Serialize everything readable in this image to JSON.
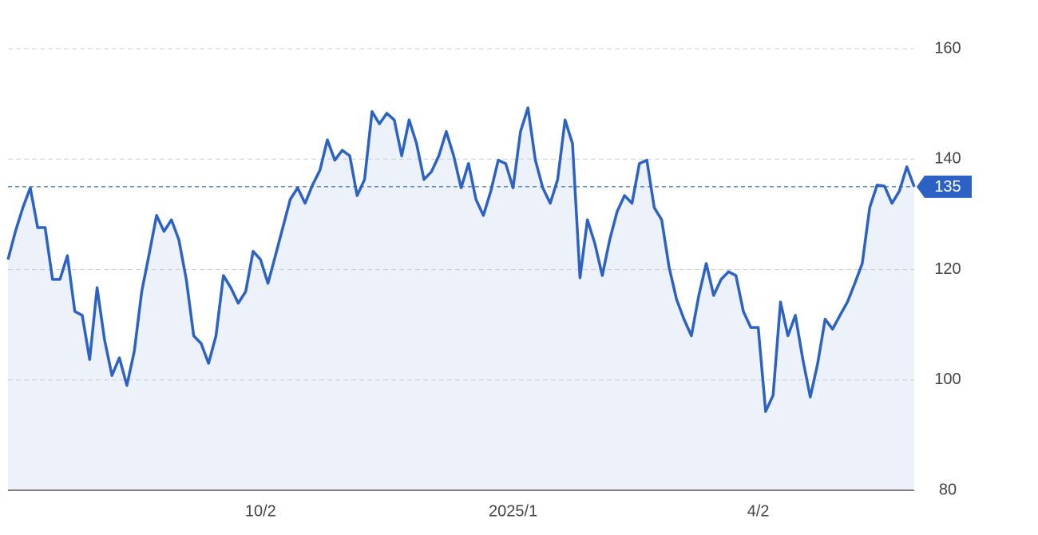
{
  "chart_data": {
    "type": "line",
    "color": "#2b62c4",
    "fill": "#edf1fa",
    "grid": true,
    "ylim": [
      80,
      160
    ],
    "yticks": [
      80,
      100,
      120,
      140,
      160
    ],
    "categories": [
      null,
      null,
      null,
      null,
      null,
      null,
      null,
      null,
      null,
      null,
      null,
      null,
      null,
      null,
      null,
      null,
      null,
      null,
      null,
      null,
      null,
      null,
      null,
      null,
      null,
      null,
      null,
      null,
      null,
      null,
      null,
      null,
      null,
      null,
      "10/2",
      null,
      null,
      null,
      null,
      null,
      null,
      null,
      null,
      null,
      null,
      null,
      null,
      null,
      null,
      null,
      null,
      null,
      null,
      null,
      null,
      null,
      null,
      null,
      null,
      null,
      null,
      null,
      null,
      null,
      null,
      null,
      null,
      null,
      "2025/1",
      null,
      null,
      null,
      null,
      null,
      null,
      null,
      null,
      null,
      null,
      null,
      null,
      null,
      null,
      null,
      null,
      null,
      null,
      null,
      null,
      null,
      null,
      null,
      null,
      null,
      null,
      null,
      null,
      null,
      null,
      null,
      null,
      "4/2",
      null,
      null,
      null,
      null,
      null,
      null,
      null,
      null,
      null,
      null,
      null,
      null,
      null,
      null,
      null,
      null,
      null,
      null,
      null,
      null,
      null
    ],
    "values": [
      121.8,
      126.9,
      131.2,
      134.8,
      127.6,
      127.6,
      118.2,
      118.2,
      122.5,
      112.4,
      111.7,
      103.7,
      116.7,
      107.3,
      100.8,
      104,
      99,
      105.2,
      116,
      122.8,
      129.8,
      126.9,
      129,
      125.4,
      118.2,
      108,
      106.6,
      103,
      108,
      118.9,
      116.7,
      113.9,
      116,
      123.3,
      121.8,
      117.5,
      122.5,
      127.6,
      132.7,
      134.8,
      132,
      135.3,
      138,
      143.5,
      139.8,
      141.6,
      140.6,
      133.4,
      136.3,
      148.6,
      146.4,
      148.3,
      147.1,
      140.6,
      147.1,
      142.8,
      136.3,
      137.7,
      140.6,
      145,
      140.6,
      134.8,
      139.2,
      132.7,
      129.8,
      134.2,
      139.8,
      139.2,
      134.8,
      145,
      149.3,
      139.8,
      134.8,
      132,
      136.3,
      147.1,
      142.8,
      118.5,
      129,
      124.7,
      118.9,
      125.4,
      130.5,
      133.4,
      132,
      139.2,
      139.8,
      131.2,
      129,
      120.4,
      114.6,
      111,
      108,
      115.3,
      121.1,
      115.3,
      118.2,
      119.6,
      118.9,
      112.4,
      109.5,
      109.5,
      94.3,
      97.2,
      114.1,
      108,
      111.7,
      103.7,
      96.9,
      103,
      111,
      109.2,
      111.7,
      114.1,
      117.5,
      121.1,
      131.2,
      135.3,
      135.1,
      132,
      134.2,
      138.6,
      135
    ]
  }
}
